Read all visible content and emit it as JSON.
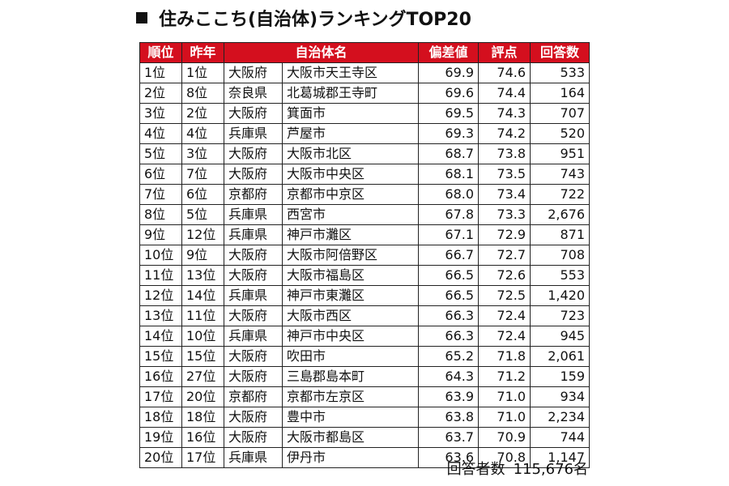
{
  "title": "住みここち(自治体)ランキングTOP20",
  "headers": [
    "順位",
    "昨年",
    "自治体名",
    "偏差値",
    "評点",
    "回答数"
  ],
  "rows": [
    [
      "1位",
      "1位",
      "大阪府",
      "大阪市天王寺区",
      "69.9",
      "74.6",
      "533"
    ],
    [
      "2位",
      "8位",
      "奈良県",
      "北葛城郡王寺町",
      "69.6",
      "74.4",
      "164"
    ],
    [
      "3位",
      "2位",
      "大阪府",
      "箕面市",
      "69.5",
      "74.3",
      "707"
    ],
    [
      "4位",
      "4位",
      "兵庫県",
      "芦屋市",
      "69.3",
      "74.2",
      "520"
    ],
    [
      "5位",
      "3位",
      "大阪府",
      "大阪市北区",
      "68.7",
      "73.8",
      "951"
    ],
    [
      "6位",
      "7位",
      "大阪府",
      "大阪市中央区",
      "68.1",
      "73.5",
      "743"
    ],
    [
      "7位",
      "6位",
      "京都府",
      "京都市中京区",
      "68.0",
      "73.4",
      "722"
    ],
    [
      "8位",
      "5位",
      "兵庫県",
      "西宮市",
      "67.8",
      "73.3",
      "2,676"
    ],
    [
      "9位",
      "12位",
      "兵庫県",
      "神戸市灘区",
      "67.1",
      "72.9",
      "871"
    ],
    [
      "10位",
      "9位",
      "大阪府",
      "大阪市阿倍野区",
      "66.7",
      "72.7",
      "708"
    ],
    [
      "11位",
      "13位",
      "大阪府",
      "大阪市福島区",
      "66.5",
      "72.6",
      "553"
    ],
    [
      "12位",
      "14位",
      "兵庫県",
      "神戸市東灘区",
      "66.5",
      "72.5",
      "1,420"
    ],
    [
      "13位",
      "11位",
      "大阪府",
      "大阪市西区",
      "66.3",
      "72.4",
      "723"
    ],
    [
      "14位",
      "10位",
      "兵庫県",
      "神戸市中央区",
      "66.3",
      "72.4",
      "945"
    ],
    [
      "15位",
      "15位",
      "大阪府",
      "吹田市",
      "65.2",
      "71.8",
      "2,061"
    ],
    [
      "16位",
      "27位",
      "大阪府",
      "三島郡島本町",
      "64.3",
      "71.2",
      "159"
    ],
    [
      "17位",
      "20位",
      "京都府",
      "京都市左京区",
      "63.9",
      "71.0",
      "934"
    ],
    [
      "18位",
      "18位",
      "大阪府",
      "豊中市",
      "63.8",
      "71.0",
      "2,234"
    ],
    [
      "19位",
      "16位",
      "大阪府",
      "大阪市都島区",
      "63.7",
      "70.9",
      "744"
    ],
    [
      "20位",
      "17位",
      "兵庫県",
      "伊丹市",
      "63.6",
      "70.8",
      "1,147"
    ]
  ],
  "footer": {
    "label": "回答者数",
    "value": "115,676名"
  }
}
